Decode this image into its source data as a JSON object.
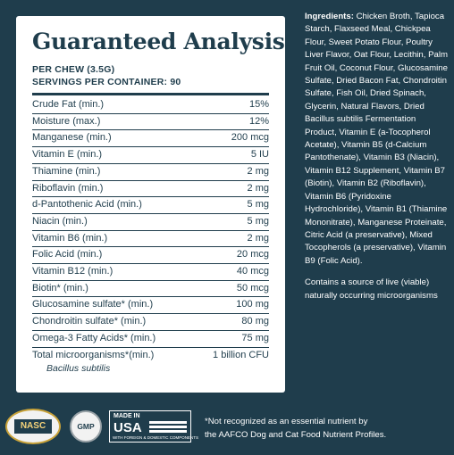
{
  "panel": {
    "title": "Guaranteed Analysis",
    "per_chew": "PER CHEW (3.5G)",
    "servings": "SERVINGS PER CONTAINER: 90",
    "rows": [
      {
        "name": "Crude Fat (min.)",
        "value": "15%"
      },
      {
        "name": "Moisture (max.)",
        "value": "12%"
      },
      {
        "name": "Manganese (min.)",
        "value": "200 mcg"
      },
      {
        "name": "Vitamin E (min.)",
        "value": "5 IU"
      },
      {
        "name": "Thiamine (min.)",
        "value": "2 mg"
      },
      {
        "name": "Riboflavin (min.)",
        "value": "2 mg"
      },
      {
        "name": "d-Pantothenic Acid (min.)",
        "value": "5 mg"
      },
      {
        "name": "Niacin (min.)",
        "value": "5 mg"
      },
      {
        "name": "Vitamin B6 (min.)",
        "value": "2 mg"
      },
      {
        "name": "Folic Acid (min.)",
        "value": "20 mcg"
      },
      {
        "name": "Vitamin B12 (min.)",
        "value": "40 mcg"
      },
      {
        "name": "Biotin* (min.)",
        "value": "50 mcg"
      },
      {
        "name": "Glucosamine sulfate* (min.)",
        "value": "100 mg"
      },
      {
        "name": "Chondroitin sulfate* (min.)",
        "value": "80 mg"
      },
      {
        "name": "Omega-3 Fatty Acids* (min.)",
        "value": "75 mg"
      },
      {
        "name": "Total microorganisms*(min.)",
        "value": "1 billion CFU"
      }
    ],
    "total_sub": "Bacillus subtilis"
  },
  "ingredients": {
    "label": "Ingredients:",
    "text": "Chicken Broth, Tapioca Starch, Flaxseed Meal, Chickpea Flour, Sweet Potato Flour, Poultry Liver Flavor, Oat Flour, Lecithin, Palm Fruit Oil, Coconut Flour, Glucosamine Sulfate, Dried Bacon Fat, Chondroitin Sulfate, Fish Oil, Dried Spinach, Glycerin, Natural Flavors, Dried Bacillus subtilis Fermentation Product, Vitamin E (a-Tocopherol Acetate), Vitamin B5 (d-Calcium Pantothenate), Vitamin B3 (Niacin), Vitamin B12 Supplement, Vitamin B7 (Biotin), Vitamin B2 (Riboflavin), Vitamin B6 (Pyridoxine Hydrochloride), Vitamin B1 (Thiamine Mononitrate), Manganese Proteinate, Citric Acid (a preservative), Mixed Tocopherols (a preservative), Vitamin B9 (Folic Acid).",
    "live": "Contains a source of live (viable) naturally occurring microorganisms"
  },
  "footnote": {
    "line1": "*Not recognized as an essential nutrient by",
    "line2": "the AAFCO Dog and Cat Food Nutrient Profiles."
  },
  "badges": {
    "nasc": "NASC",
    "gmp": "GMP",
    "made_in": "MADE IN",
    "usa": "USA",
    "usa_tag": "WITH FOREIGN & DOMESTIC COMPONENTS"
  },
  "colors": {
    "background": "#1f3d4c",
    "panel": "#ffffff",
    "text_dark": "#1f3d4c"
  }
}
